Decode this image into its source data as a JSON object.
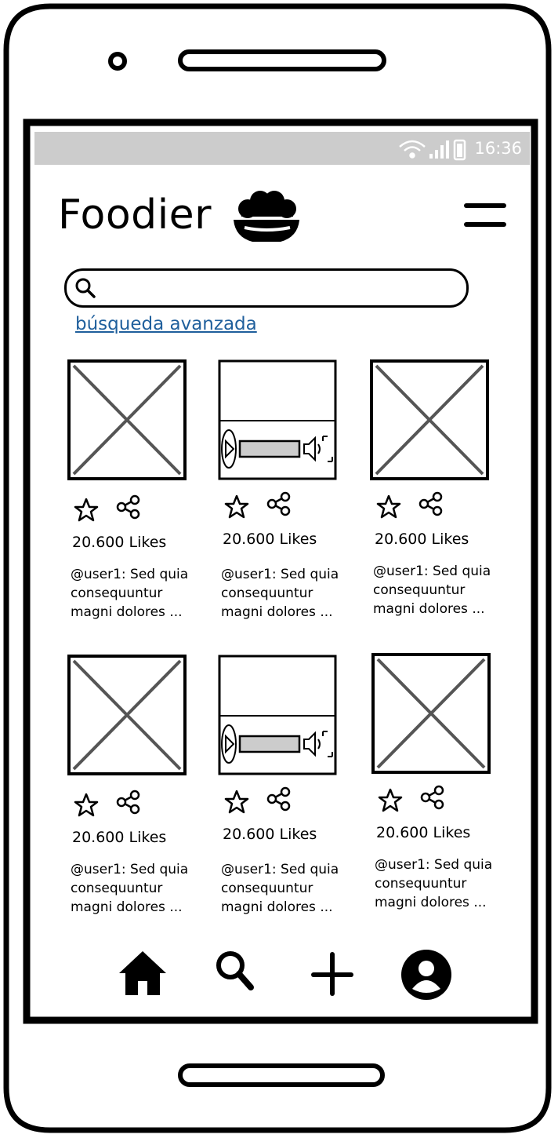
{
  "status_bar": {
    "time": "16:36",
    "icons": [
      "wifi-icon",
      "signal-icon",
      "battery-icon"
    ]
  },
  "header": {
    "app_name": "Foodier",
    "logo_icon": "bowl-icon",
    "menu_icon": "hamburger-menu-icon"
  },
  "search": {
    "placeholder": "",
    "value": "",
    "icon": "search-icon"
  },
  "advanced_search": {
    "label": "búsqueda avanzada"
  },
  "posts": [
    {
      "media_type": "image",
      "likes": "20.600 Likes",
      "caption": "@user1: Sed quia consequuntur magni dolores ..."
    },
    {
      "media_type": "video",
      "likes": "20.600 Likes",
      "caption": "@user1: Sed quia consequuntur magni dolores ..."
    },
    {
      "media_type": "image",
      "likes": "20.600 Likes",
      "caption": "@user1: Sed quia consequuntur magni dolores ..."
    },
    {
      "media_type": "image",
      "likes": "20.600 Likes",
      "caption": "@user1: Sed quia consequuntur magni dolores ..."
    },
    {
      "media_type": "video",
      "likes": "20.600 Likes",
      "caption": "@user1: Sed quia consequuntur magni dolores ..."
    },
    {
      "media_type": "image",
      "likes": "20.600 Likes",
      "caption": "@user1: Sed quia consequuntur magni dolores ..."
    }
  ],
  "bottom_nav": {
    "items": [
      "home-icon",
      "search-icon",
      "add-icon",
      "profile-icon"
    ]
  },
  "colors": {
    "status_bar": "#cccccc",
    "link": "#1f5f9c",
    "placeholder": "#555555"
  }
}
